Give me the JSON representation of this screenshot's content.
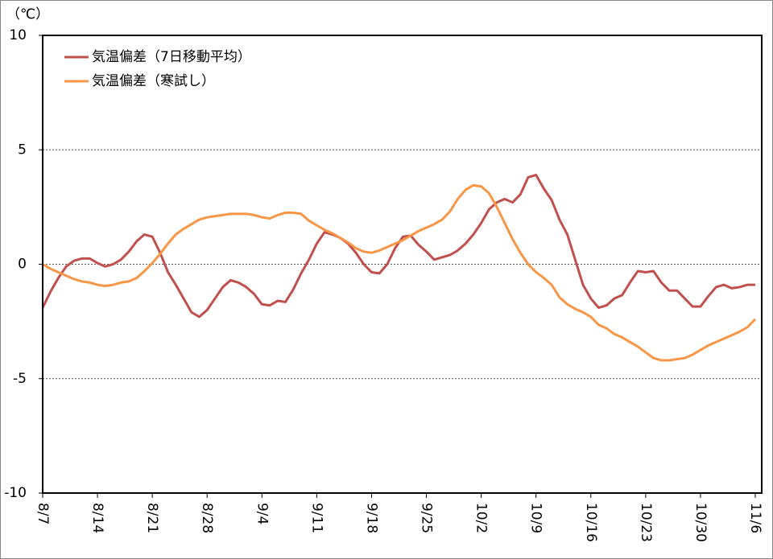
{
  "chart_data": {
    "type": "line",
    "unit_label": "（℃）",
    "categories": [
      "8/7",
      null,
      null,
      null,
      null,
      null,
      null,
      "8/14",
      null,
      null,
      null,
      null,
      null,
      null,
      "8/21",
      null,
      null,
      null,
      null,
      null,
      null,
      "8/28",
      null,
      null,
      null,
      null,
      null,
      null,
      "9/4",
      null,
      null,
      null,
      null,
      null,
      null,
      "9/11",
      null,
      null,
      null,
      null,
      null,
      null,
      "9/18",
      null,
      null,
      null,
      null,
      null,
      null,
      "9/25",
      null,
      null,
      null,
      null,
      null,
      null,
      "10/2",
      null,
      null,
      null,
      null,
      null,
      null,
      "10/9",
      null,
      null,
      null,
      null,
      null,
      null,
      "10/16",
      null,
      null,
      null,
      null,
      null,
      null,
      "10/23",
      null,
      null,
      null,
      null,
      null,
      null,
      "10/30",
      null,
      null,
      null,
      null,
      null,
      null,
      "11/6"
    ],
    "series": [
      {
        "name": "気温偏差（7日移動平均）",
        "color": "#c0504d",
        "values": [
          -1.9,
          -1.2,
          -0.6,
          -0.1,
          0.15,
          0.25,
          0.25,
          0.05,
          -0.1,
          0.0,
          0.2,
          0.55,
          1.0,
          1.3,
          1.2,
          0.5,
          -0.35,
          -0.9,
          -1.5,
          -2.1,
          -2.3,
          -2.0,
          -1.5,
          -1.0,
          -0.7,
          -0.8,
          -1.0,
          -1.3,
          -1.75,
          -1.8,
          -1.6,
          -1.65,
          -1.1,
          -0.4,
          0.2,
          0.9,
          1.4,
          1.3,
          1.15,
          0.9,
          0.5,
          0.0,
          -0.35,
          -0.4,
          0.0,
          0.7,
          1.2,
          1.25,
          0.85,
          0.55,
          0.2,
          0.3,
          0.4,
          0.6,
          0.9,
          1.3,
          1.8,
          2.4,
          2.7,
          2.85,
          2.7,
          3.05,
          3.8,
          3.9,
          3.3,
          2.8,
          1.95,
          1.3,
          0.2,
          -0.9,
          -1.5,
          -1.9,
          -1.8,
          -1.5,
          -1.35,
          -0.8,
          -0.3,
          -0.35,
          -0.3,
          -0.8,
          -1.15,
          -1.15,
          -1.5,
          -1.85,
          -1.85,
          -1.4,
          -1.0,
          -0.9,
          -1.05,
          -1.0,
          -0.9,
          -0.9
        ]
      },
      {
        "name": "気温偏差（寒試し）",
        "color": "#f79646",
        "values": [
          0.0,
          -0.2,
          -0.35,
          -0.5,
          -0.65,
          -0.75,
          -0.8,
          -0.9,
          -0.95,
          -0.9,
          -0.8,
          -0.75,
          -0.6,
          -0.3,
          0.05,
          0.45,
          0.9,
          1.3,
          1.55,
          1.75,
          1.95,
          2.05,
          2.1,
          2.15,
          2.2,
          2.2,
          2.2,
          2.15,
          2.05,
          2.0,
          2.15,
          2.25,
          2.25,
          2.2,
          1.9,
          1.7,
          1.5,
          1.35,
          1.15,
          0.95,
          0.7,
          0.55,
          0.5,
          0.6,
          0.75,
          0.9,
          1.05,
          1.25,
          1.45,
          1.6,
          1.75,
          1.95,
          2.3,
          2.85,
          3.25,
          3.45,
          3.4,
          3.1,
          2.5,
          1.8,
          1.1,
          0.5,
          0.0,
          -0.35,
          -0.6,
          -0.9,
          -1.45,
          -1.75,
          -1.95,
          -2.1,
          -2.3,
          -2.65,
          -2.8,
          -3.05,
          -3.2,
          -3.4,
          -3.6,
          -3.85,
          -4.1,
          -4.2,
          -4.2,
          -4.15,
          -4.1,
          -3.95,
          -3.75,
          -3.55,
          -3.4,
          -3.25,
          -3.1,
          -2.95,
          -2.75,
          -2.4
        ]
      }
    ],
    "ylim": [
      -10,
      10
    ],
    "yticks": [
      -10,
      -5,
      0,
      5,
      10
    ],
    "grid": true
  }
}
